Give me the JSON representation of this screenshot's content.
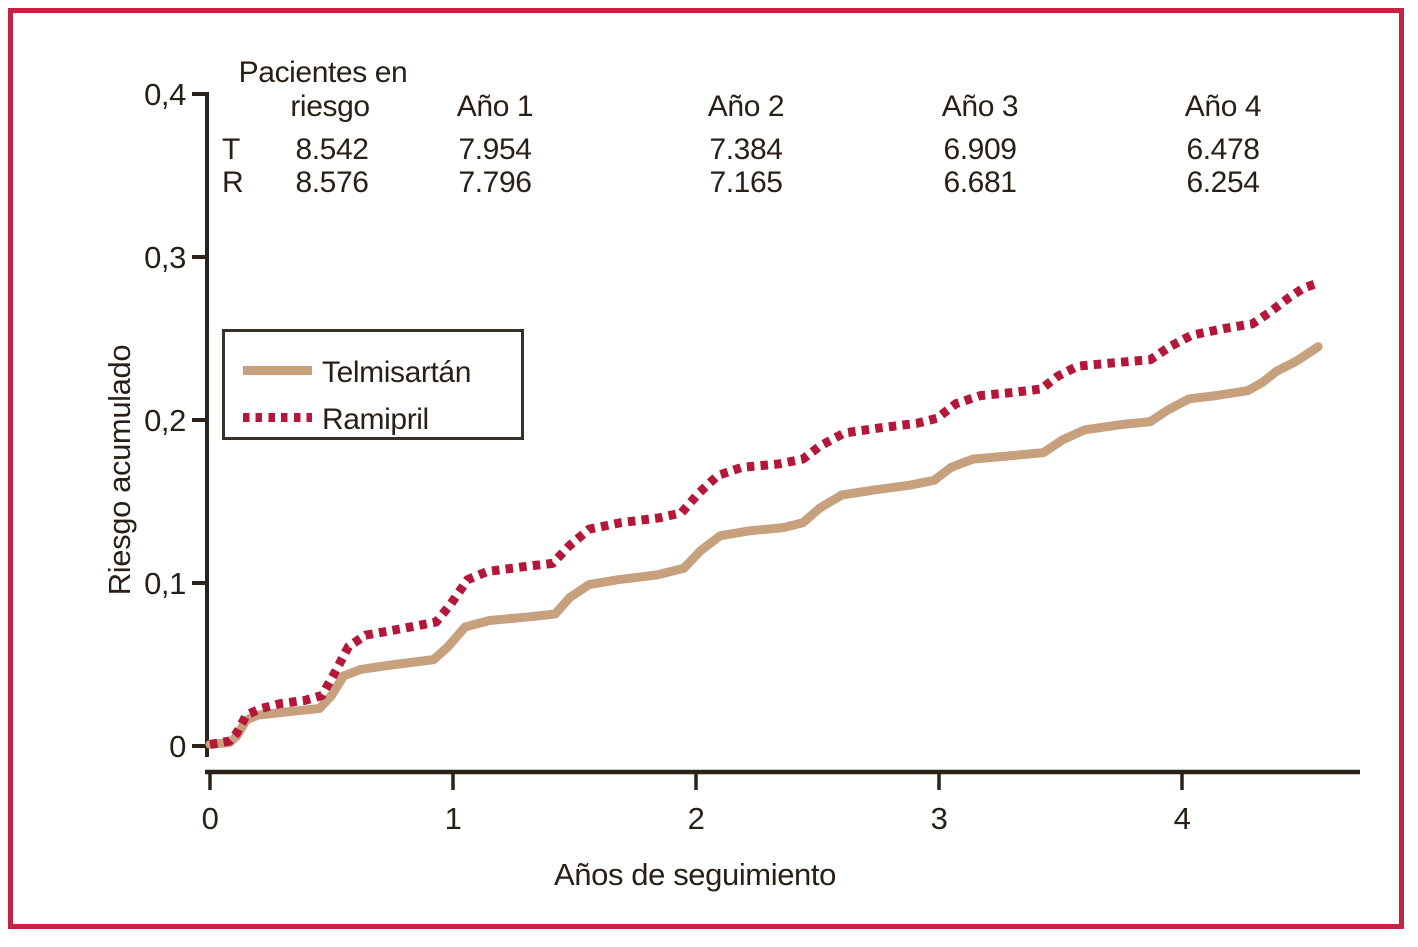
{
  "figure": {
    "border_color": "#c22443",
    "background_color": "#ffffff",
    "text_color": "#281f17",
    "axis_color": "#2b2219"
  },
  "risk_table": {
    "title_line1": "Pacientes en",
    "title_line2": "riesgo",
    "year_columns": [
      "Año 1",
      "Año 2",
      "Año 3",
      "Año 4"
    ],
    "rows": [
      {
        "label": "T",
        "at_risk": "8.542",
        "values": [
          "7.954",
          "7.384",
          "6.909",
          "6.478"
        ]
      },
      {
        "label": "R",
        "at_risk": "8.576",
        "values": [
          "7.796",
          "7.165",
          "6.681",
          "6.254"
        ]
      }
    ]
  },
  "legend": {
    "items": [
      {
        "label": "Telmisartán",
        "color": "#c7a17e",
        "style": "solid"
      },
      {
        "label": "Ramipril",
        "color": "#b5173a",
        "style": "dotted"
      }
    ]
  },
  "chart_data": {
    "type": "line",
    "title": "",
    "xlabel": "Años de seguimiento",
    "ylabel": "Riesgo acumulado",
    "xlim": [
      0,
      4.73
    ],
    "ylim": [
      0,
      0.4
    ],
    "x_ticks": [
      0,
      1,
      2,
      3,
      4
    ],
    "y_ticks": [
      0,
      0.1,
      0.2,
      0.3,
      0.4
    ],
    "y_tick_labels": [
      "0",
      "0,1",
      "0,2",
      "0,3",
      "0,4"
    ],
    "grid": false,
    "legend_position": "upper-left-inside",
    "series": [
      {
        "name": "Telmisartán",
        "color": "#c7a17e",
        "line_style": "solid",
        "points": [
          [
            0,
            0.001
          ],
          [
            0.08,
            0.002
          ],
          [
            0.11,
            0.006
          ],
          [
            0.15,
            0.016
          ],
          [
            0.2,
            0.019
          ],
          [
            0.32,
            0.021
          ],
          [
            0.45,
            0.023
          ],
          [
            0.5,
            0.031
          ],
          [
            0.55,
            0.043
          ],
          [
            0.62,
            0.047
          ],
          [
            0.76,
            0.05
          ],
          [
            0.92,
            0.053
          ],
          [
            0.98,
            0.061
          ],
          [
            1.05,
            0.073
          ],
          [
            1.15,
            0.077
          ],
          [
            1.3,
            0.079
          ],
          [
            1.42,
            0.081
          ],
          [
            1.48,
            0.091
          ],
          [
            1.56,
            0.099
          ],
          [
            1.68,
            0.102
          ],
          [
            1.84,
            0.105
          ],
          [
            1.95,
            0.109
          ],
          [
            2.02,
            0.12
          ],
          [
            2.1,
            0.129
          ],
          [
            2.22,
            0.132
          ],
          [
            2.36,
            0.134
          ],
          [
            2.44,
            0.137
          ],
          [
            2.51,
            0.146
          ],
          [
            2.6,
            0.154
          ],
          [
            2.73,
            0.157
          ],
          [
            2.88,
            0.16
          ],
          [
            2.98,
            0.163
          ],
          [
            3.05,
            0.171
          ],
          [
            3.14,
            0.176
          ],
          [
            3.29,
            0.178
          ],
          [
            3.43,
            0.18
          ],
          [
            3.51,
            0.188
          ],
          [
            3.6,
            0.194
          ],
          [
            3.74,
            0.197
          ],
          [
            3.87,
            0.199
          ],
          [
            3.94,
            0.206
          ],
          [
            4.03,
            0.213
          ],
          [
            4.14,
            0.215
          ],
          [
            4.27,
            0.218
          ],
          [
            4.33,
            0.223
          ],
          [
            4.39,
            0.23
          ],
          [
            4.43,
            0.233
          ],
          [
            4.47,
            0.236
          ],
          [
            4.52,
            0.241
          ],
          [
            4.56,
            0.245
          ]
        ]
      },
      {
        "name": "Ramipril",
        "color": "#b5173a",
        "line_style": "dotted",
        "points": [
          [
            0,
            0.001
          ],
          [
            0.08,
            0.003
          ],
          [
            0.11,
            0.008
          ],
          [
            0.15,
            0.019
          ],
          [
            0.21,
            0.023
          ],
          [
            0.29,
            0.026
          ],
          [
            0.39,
            0.028
          ],
          [
            0.46,
            0.031
          ],
          [
            0.51,
            0.044
          ],
          [
            0.57,
            0.061
          ],
          [
            0.64,
            0.068
          ],
          [
            0.79,
            0.072
          ],
          [
            0.93,
            0.076
          ],
          [
            0.99,
            0.087
          ],
          [
            1.06,
            0.102
          ],
          [
            1.14,
            0.107
          ],
          [
            1.29,
            0.11
          ],
          [
            1.41,
            0.112
          ],
          [
            1.48,
            0.123
          ],
          [
            1.56,
            0.133
          ],
          [
            1.69,
            0.137
          ],
          [
            1.85,
            0.14
          ],
          [
            1.94,
            0.143
          ],
          [
            2.01,
            0.155
          ],
          [
            2.09,
            0.166
          ],
          [
            2.19,
            0.171
          ],
          [
            2.34,
            0.173
          ],
          [
            2.44,
            0.176
          ],
          [
            2.51,
            0.184
          ],
          [
            2.61,
            0.192
          ],
          [
            2.75,
            0.195
          ],
          [
            2.91,
            0.198
          ],
          [
            2.99,
            0.201
          ],
          [
            3.07,
            0.21
          ],
          [
            3.17,
            0.215
          ],
          [
            3.31,
            0.217
          ],
          [
            3.42,
            0.219
          ],
          [
            3.49,
            0.227
          ],
          [
            3.57,
            0.233
          ],
          [
            3.71,
            0.235
          ],
          [
            3.87,
            0.237
          ],
          [
            3.95,
            0.245
          ],
          [
            4.04,
            0.252
          ],
          [
            4.17,
            0.256
          ],
          [
            4.29,
            0.259
          ],
          [
            4.36,
            0.266
          ],
          [
            4.44,
            0.275
          ],
          [
            4.5,
            0.281
          ],
          [
            4.56,
            0.284
          ]
        ]
      }
    ]
  }
}
